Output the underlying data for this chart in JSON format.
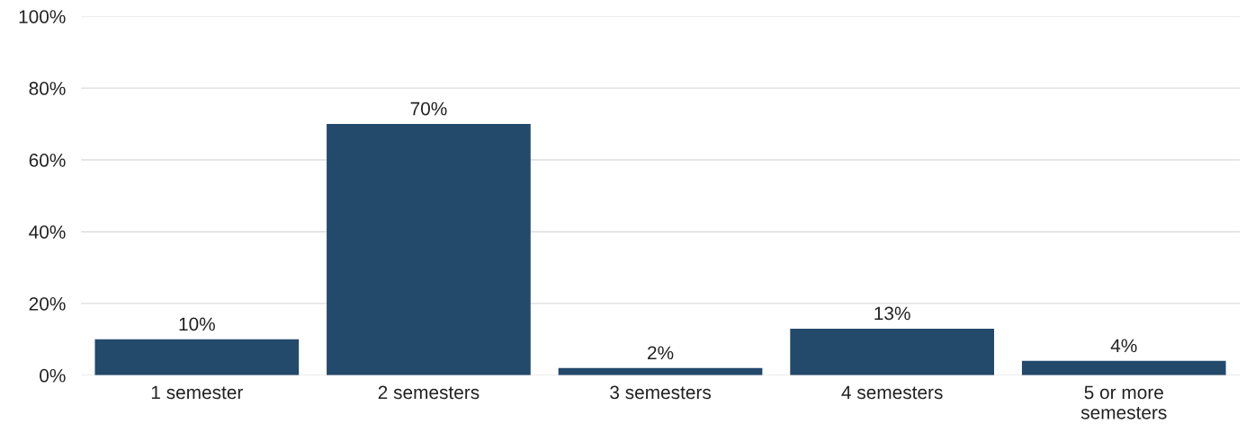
{
  "chart_data": {
    "type": "bar",
    "categories": [
      "1 semester",
      "2 semesters",
      "3 semesters",
      "4 semesters",
      "5 or more\nsemesters"
    ],
    "values": [
      10,
      70,
      2,
      13,
      4
    ],
    "value_labels": [
      "10%",
      "70%",
      "2%",
      "13%",
      "4%"
    ],
    "color": "#23496b",
    "ylim": [
      0,
      100
    ],
    "yticks": [
      {
        "value": 0,
        "label": "0%"
      },
      {
        "value": 20,
        "label": "20%"
      },
      {
        "value": 40,
        "label": "40%"
      },
      {
        "value": 60,
        "label": "60%"
      },
      {
        "value": 80,
        "label": "80%"
      },
      {
        "value": 100,
        "label": "100%"
      }
    ],
    "grid": "y"
  }
}
